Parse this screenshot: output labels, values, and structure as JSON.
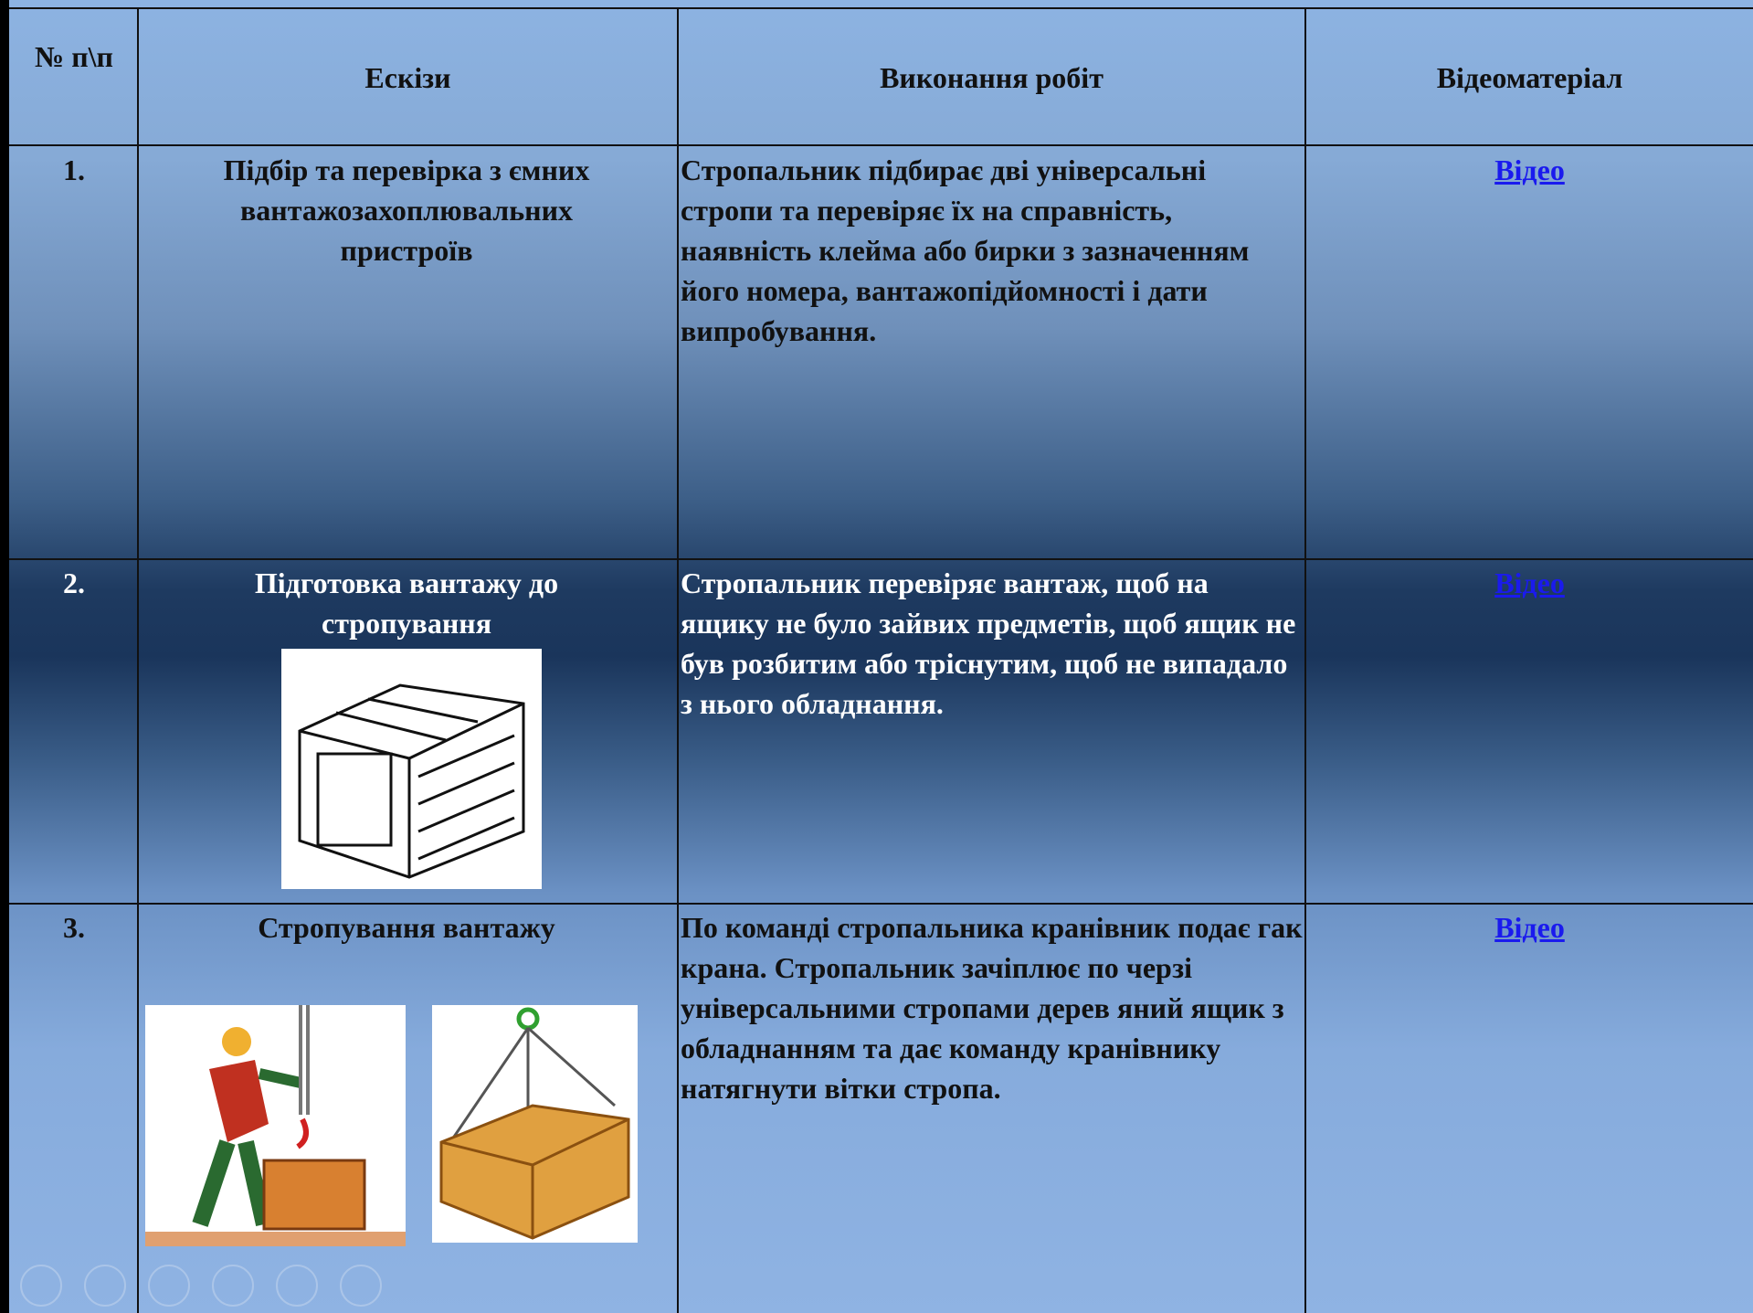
{
  "table": {
    "header": [
      "№ п\\п",
      "Ескізи",
      "Виконання робіт",
      "Відеоматеріал"
    ],
    "rows": [
      [
        "1.",
        "Підбір та перевірка з ємних вантажозахоплювальних пристроїв",
        "Стропальник підбирає дві універсальні стропи та перевіряє їх на справність, наявність клейма або бирки з зазначенням його номера, вантажопідйомності і дати випробування.",
        "Відео"
      ],
      [
        "2.",
        "Підготовка вантажу до стропування",
        "Стропальник перевіряє вантаж, щоб на ящику не було зайвих предметів, щоб ящик не був розбитим або тріснутим, щоб не випадало з нього обладнання.",
        "Відео"
      ],
      [
        "3.",
        "Стропування вантажу",
        "По команді стропальника кранівник подає гак крана. Стропальник зачіплює по черзі універсальними стропами дерев яний ящик з обладнанням та дає команду кранівнику натягнути вітки стропа.",
        "Відео"
      ]
    ]
  }
}
